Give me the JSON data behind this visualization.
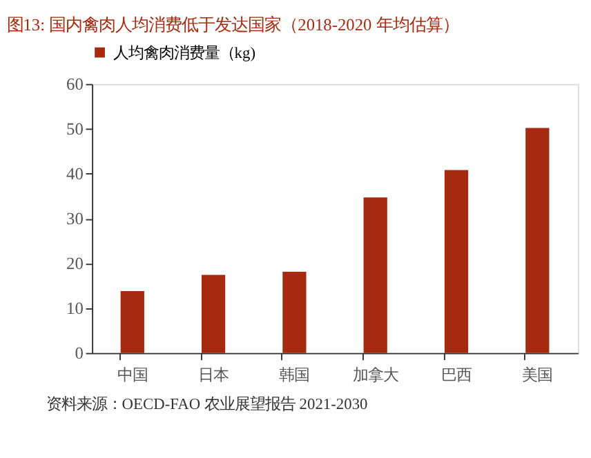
{
  "chart_data": {
    "type": "bar",
    "title": "图13:   国内禽肉人均消费低于发达国家（2018-2020 年均估算）",
    "categories": [
      "中国",
      "日本",
      "韩国",
      "加拿大",
      "巴西",
      "美国"
    ],
    "series": [
      {
        "name": "人均禽肉消费量（kg)",
        "color": "#a52a0f",
        "values": [
          13.8,
          17.4,
          18.1,
          34.7,
          40.8,
          50.2
        ]
      }
    ],
    "ylim": [
      0,
      60
    ],
    "yticks": [
      0,
      10,
      20,
      30,
      40,
      50,
      60
    ],
    "grid": false,
    "legend": "top",
    "annotations": [
      "资料来源：OECD-FAO 农业展望报告 2021-2030"
    ]
  }
}
